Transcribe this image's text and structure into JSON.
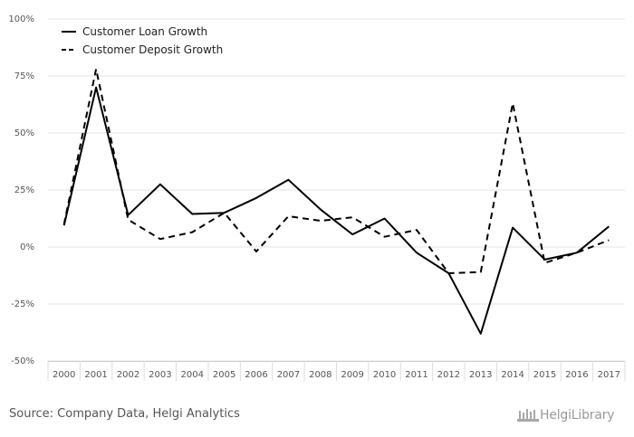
{
  "chart_data": {
    "type": "line",
    "x": [
      "2000",
      "2001",
      "2002",
      "2003",
      "2004",
      "2005",
      "2006",
      "2007",
      "2008",
      "2009",
      "2010",
      "2011",
      "2012",
      "2013",
      "2014",
      "2015",
      "2016",
      "2017"
    ],
    "ylim": [
      -50,
      100
    ],
    "yticks": [
      -50,
      -25,
      0,
      25,
      50,
      75,
      100
    ],
    "ytick_labels": [
      "-50%",
      "-25%",
      "0%",
      "25%",
      "50%",
      "75%",
      "100%"
    ],
    "grid": true,
    "legend_position": "top-left",
    "series": [
      {
        "name": "Customer Loan Growth",
        "style": "solid",
        "color": "#000000",
        "values": [
          9.5,
          70,
          14,
          27.5,
          14.5,
          15,
          21.5,
          29.5,
          16.5,
          5.5,
          12.5,
          -2.5,
          -11.5,
          -38,
          8.5,
          -5.5,
          -2.5,
          9
        ]
      },
      {
        "name": "Customer Deposit Growth",
        "style": "dashed",
        "color": "#000000",
        "values": [
          10,
          78,
          12,
          3.5,
          6.5,
          15,
          -2,
          13.5,
          11.5,
          13,
          4.5,
          7.5,
          -11.5,
          -11,
          63,
          -7,
          -2.5,
          3
        ]
      }
    ]
  },
  "footer": {
    "source": "Source: Company Data, Helgi Analytics",
    "logo_text": "HelgiLibrary"
  }
}
